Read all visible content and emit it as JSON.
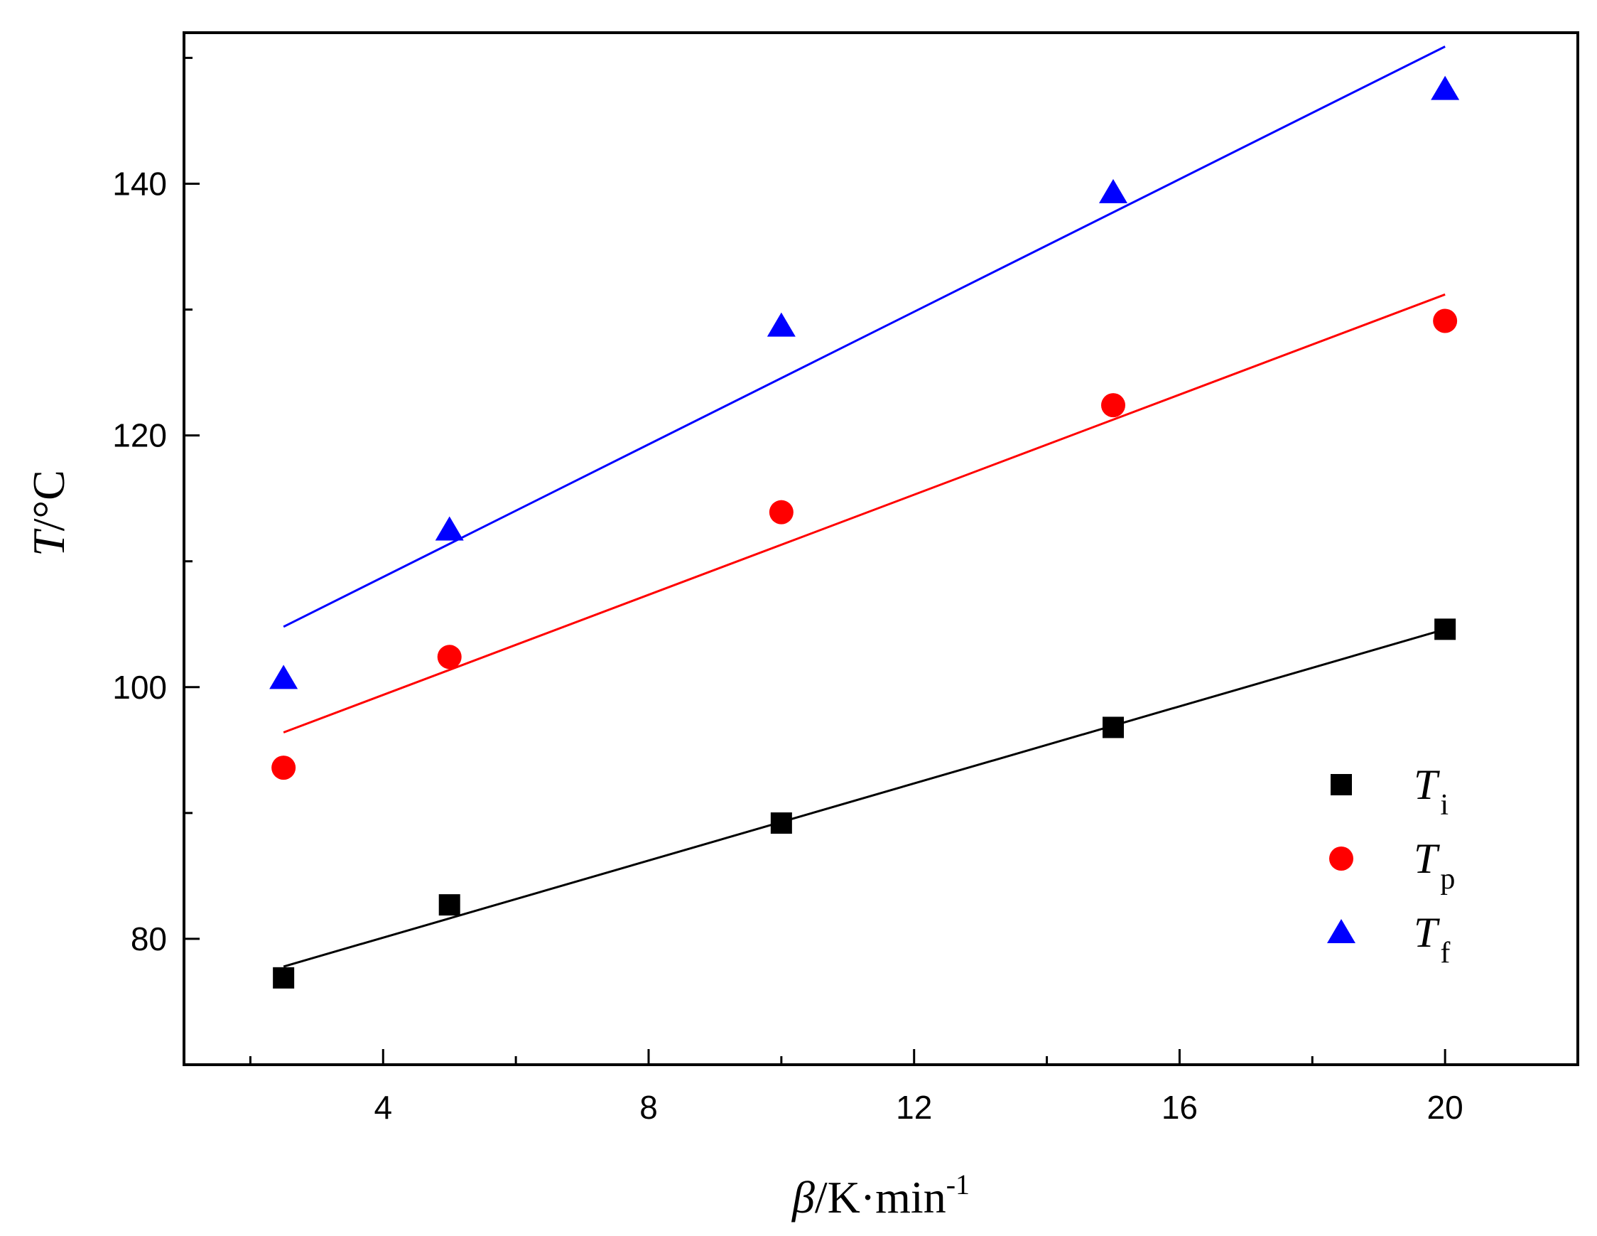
{
  "chart_data": {
    "type": "scatter",
    "title": "",
    "xlabel": {
      "symbol": "β",
      "unit": "/K·min",
      "exp": "-1"
    },
    "ylabel": {
      "symbol": "T",
      "unit": "/°C"
    },
    "xlim": [
      1,
      22
    ],
    "ylim": [
      70,
      152
    ],
    "x_ticks": [
      4,
      8,
      12,
      16,
      20
    ],
    "x_minor_ticks": [
      2,
      6,
      10,
      14,
      18
    ],
    "y_ticks": [
      80,
      100,
      120,
      140
    ],
    "y_minor_ticks": [
      90,
      110,
      130,
      150
    ],
    "x_tick_labels": [
      "4",
      "8",
      "12",
      "16",
      "20"
    ],
    "y_tick_labels": [
      "80",
      "100",
      "120",
      "140"
    ],
    "legend_position": "bottom-right",
    "series": [
      {
        "name": "Ti",
        "label_main": "T",
        "label_sub": "i",
        "marker": "square",
        "color": "#000000",
        "x": [
          2.5,
          5,
          10,
          15,
          20
        ],
        "y": [
          76.9,
          82.7,
          89.2,
          96.8,
          104.6
        ],
        "fit": {
          "x": [
            2.5,
            20
          ],
          "y": [
            77.8,
            104.6
          ]
        }
      },
      {
        "name": "Tp",
        "label_main": "T",
        "label_sub": "p",
        "marker": "circle",
        "color": "#ff0000",
        "x": [
          2.5,
          5,
          10,
          15,
          20
        ],
        "y": [
          93.6,
          102.4,
          113.9,
          122.4,
          129.1
        ],
        "fit": {
          "x": [
            2.5,
            20
          ],
          "y": [
            96.4,
            131.2
          ]
        }
      },
      {
        "name": "Tf",
        "label_main": "T",
        "label_sub": "f",
        "marker": "triangle",
        "color": "#0000ff",
        "x": [
          2.5,
          5,
          10,
          15,
          20
        ],
        "y": [
          100.7,
          112.5,
          128.7,
          139.3,
          147.5
        ],
        "fit": {
          "x": [
            2.5,
            20
          ],
          "y": [
            104.8,
            150.9
          ]
        }
      }
    ]
  }
}
